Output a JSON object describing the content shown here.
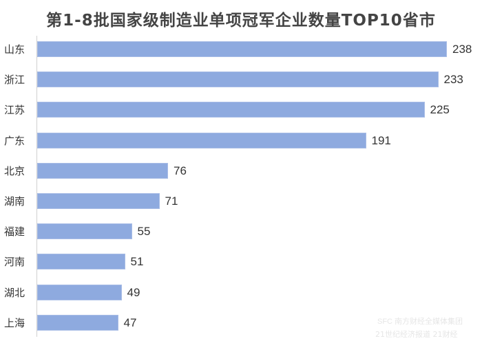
{
  "chart_data": {
    "type": "bar",
    "orientation": "horizontal",
    "title": "第1-8批国家级制造业单项冠军企业数量TOP10省市",
    "categories": [
      "山东",
      "浙江",
      "江苏",
      "广东",
      "北京",
      "湖南",
      "福建",
      "河南",
      "湖北",
      "上海"
    ],
    "values": [
      238,
      233,
      225,
      191,
      76,
      71,
      55,
      51,
      49,
      47
    ],
    "xlabel": "",
    "ylabel": "",
    "grid": false,
    "legend": null,
    "bar_color": "#8eaadf",
    "data_labels": true
  },
  "watermark": {
    "logo": "SFC",
    "line1": "南方财经全媒体集团",
    "line2": "21世纪经济报道  21财经"
  }
}
